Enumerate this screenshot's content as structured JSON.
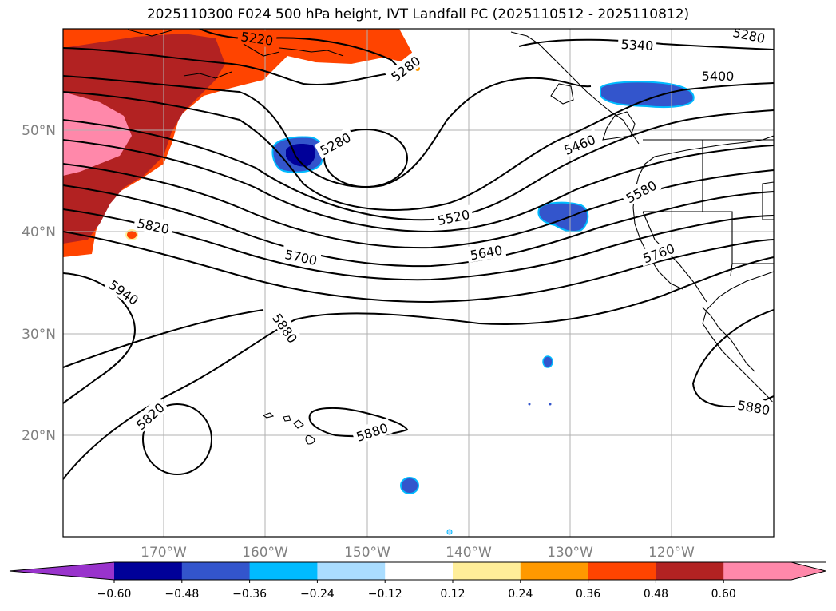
{
  "title": "2025110300 F024 500 hPa height, IVT Landfall PC (2025110512 - 2025110812)",
  "lat_labels": [
    "50°N",
    "40°N",
    "30°N",
    "20°N"
  ],
  "lon_labels": [
    "170°W",
    "160°W",
    "150°W",
    "140°W",
    "130°W",
    "120°W"
  ],
  "colorbar": {
    "colors": [
      "#9933cc",
      "#000099",
      "#3355cc",
      "#00bbff",
      "#aaddff",
      "#ffffff",
      "#ffee99",
      "#ff9900",
      "#ff4400",
      "#b22222",
      "#ff88aa",
      "#ff88aa"
    ],
    "tick_labels": [
      "−0.60",
      "−0.48",
      "−0.36",
      "−0.24",
      "−0.12",
      "0.12",
      "0.24",
      "0.36",
      "0.48",
      "0.60"
    ]
  },
  "contour_labels": {
    "c5220": "5220",
    "c5280a": "5280",
    "c5280b": "5280",
    "c5280c": "5280",
    "c5340": "5340",
    "c5400": "5400",
    "c5460": "5460",
    "c5520": "5520",
    "c5580": "5580",
    "c5640": "5640",
    "c5700": "5700",
    "c5760": "5760",
    "c5820a": "5820",
    "c5820b": "5820",
    "c5880a": "5880",
    "c5880b": "5880",
    "c5880c": "5880",
    "c5940": "5940"
  }
}
